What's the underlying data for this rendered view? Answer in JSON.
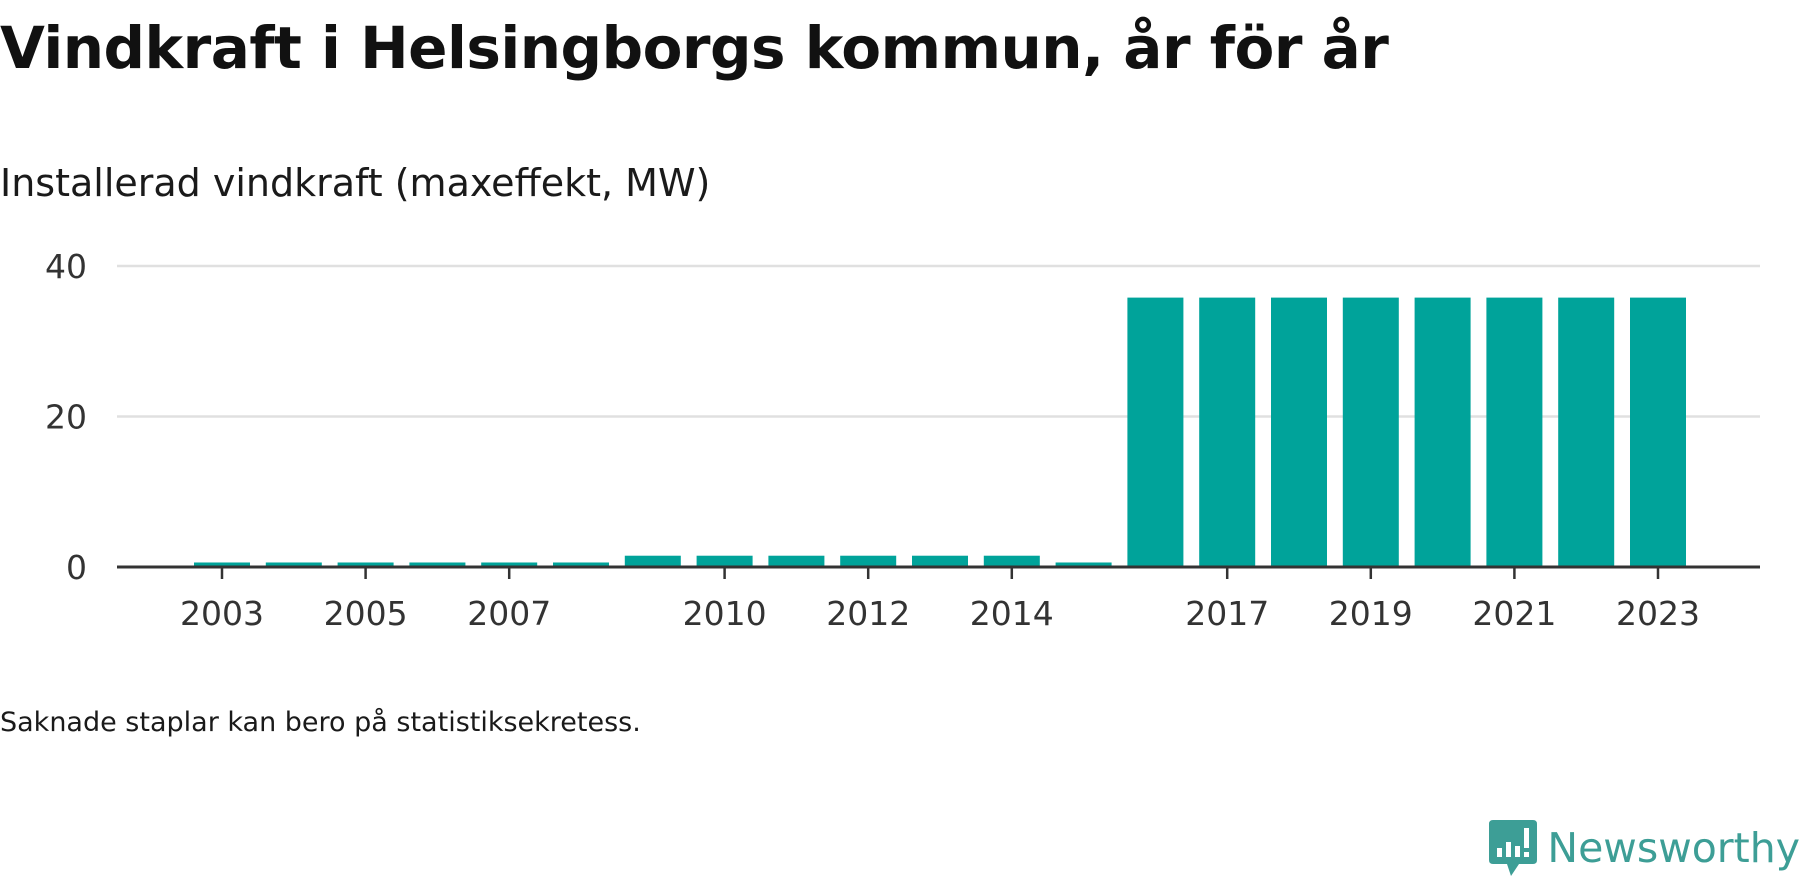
{
  "title": "Vindkraft i Helsingborgs kommun, år för år",
  "subtitle": "Installerad vindkraft (maxeffekt, MW)",
  "footnote": "Saknade staplar kan bero på statistiksekretess.",
  "brand": {
    "name": "Newsworthy",
    "color": "#3d9e96",
    "icon": "newsworthy-logo-icon"
  },
  "colors": {
    "bar": "#00a39a",
    "grid": "#e0e0e0",
    "axis": "#333333"
  },
  "chart_data": {
    "type": "bar",
    "title": "Vindkraft i Helsingborgs kommun, år för år",
    "subtitle": "Installerad vindkraft (maxeffekt, MW)",
    "xlabel": "",
    "ylabel": "",
    "categories": [
      2003,
      2004,
      2005,
      2006,
      2007,
      2008,
      2009,
      2010,
      2011,
      2012,
      2013,
      2014,
      2015,
      2016,
      2017,
      2018,
      2019,
      2020,
      2021,
      2022,
      2023
    ],
    "values": [
      0.6,
      0.6,
      0.6,
      0.6,
      0.6,
      0.6,
      1.5,
      1.5,
      1.5,
      1.5,
      1.5,
      1.5,
      0.6,
      35.8,
      35.8,
      35.8,
      35.8,
      35.8,
      35.8,
      35.8,
      35.8
    ],
    "x_ticks": [
      2003,
      2005,
      2007,
      2010,
      2012,
      2014,
      2017,
      2019,
      2021,
      2023
    ],
    "y_ticks": [
      0,
      20,
      40
    ],
    "ylim": [
      0,
      40
    ],
    "grid": true,
    "legend": "none"
  }
}
